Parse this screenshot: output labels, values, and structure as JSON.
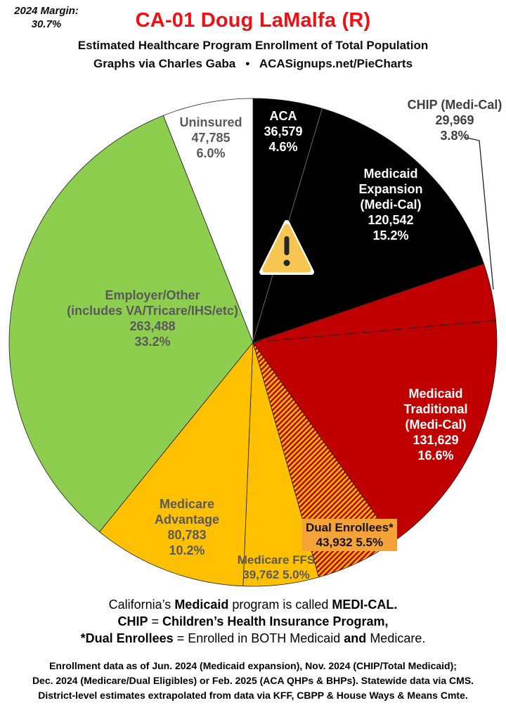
{
  "header": {
    "margin_label": "2024 Margin:",
    "margin_value": "30.7%",
    "title": "CA-01 Doug LaMalfa (R)",
    "title_color": "#f10e15",
    "subtitle": "Estimated Healthcare Program Enrollment of Total Population",
    "byline": "Graphs via Charles Gaba   •   ACASignups.net/PieCharts"
  },
  "chart_data": {
    "type": "pie",
    "title": "Estimated Healthcare Program Enrollment of Total Population",
    "district": "CA-01",
    "representative": "Doug LaMalfa (R)",
    "start_angle_deg": 0,
    "direction": "clockwise",
    "legend": "none",
    "white_divider_after_slice": 0,
    "hatch_colors": [
      "#C00000",
      "#FFC000"
    ],
    "warning_icon": {
      "fill": "#F7C552",
      "border": "#FFFFFF",
      "glyph": "#262626"
    },
    "slices": [
      {
        "id": "aca",
        "name": "ACA",
        "enrollment": "36,579",
        "pct": 4.6,
        "color": "#000000",
        "label_text": "ACA\n36,579\n4.6%"
      },
      {
        "id": "medicaid-expansion",
        "name": "Medicaid Expansion (Medi-Cal)",
        "enrollment": "120,542",
        "pct": 15.2,
        "color": "#000000",
        "label_text": "Medicaid\nExpansion\n(Medi-Cal)\n120,542\n15.2%"
      },
      {
        "id": "chip",
        "name": "CHIP (Medi-Cal)",
        "enrollment": "29,969",
        "pct": 3.8,
        "color": "#C00000",
        "label_text": "CHIP (Medi-Cal)\n29,969\n3.8%"
      },
      {
        "id": "medicaid-traditional",
        "name": "Medicaid Traditional (Medi-Cal)",
        "enrollment": "131,629",
        "pct": 16.6,
        "color": "#C00000",
        "label_text": "Medicaid\nTraditional\n(Medi-Cal)\n131,629\n16.6%"
      },
      {
        "id": "dual-enrollees",
        "name": "Dual Enrollees*",
        "enrollment": "43,932",
        "pct": 5.5,
        "color": "#C00000",
        "pattern": "hatch",
        "label_text": "Dual Enrollees*\n43,932 5.5%"
      },
      {
        "id": "medicare-ffs",
        "name": "Medicare FFS",
        "enrollment": "39,762",
        "pct": 5.0,
        "color": "#FFC000",
        "label_text": "Medicare FFS\n39,762 5.0%"
      },
      {
        "id": "medicare-advantage",
        "name": "Medicare Advantage",
        "enrollment": "80,783",
        "pct": 10.2,
        "color": "#FFC000",
        "label_text": "Medicare\nAdvantage\n80,783\n10.2%"
      },
      {
        "id": "employer-other",
        "name": "Employer/Other (includes VA/Tricare/IHS/etc)",
        "enrollment": "263,488",
        "pct": 33.2,
        "color": "#8DCE4F",
        "label_text": "Employer/Other\n(includes VA/Tricare/IHS/etc)\n263,488\n33.2%"
      },
      {
        "id": "uninsured",
        "name": "Uninsured",
        "enrollment": "47,785",
        "pct": 6.0,
        "color": "#FFFFFF",
        "label_text": "Uninsured\n47,785\n6.0%"
      }
    ]
  },
  "notes": {
    "l1a": "California’s ",
    "l1b": "Medicaid",
    "l1c": " program is called ",
    "l1d": "MEDI-CAL.",
    "l2a": "CHIP",
    "l2b": " = ",
    "l2c": "Children’s Health Insurance Program,",
    "l3a": "*Dual Enrollees",
    "l3b": " = Enrolled in BOTH Medicaid ",
    "l3c": "and",
    "l3d": " Medicare."
  },
  "footer": {
    "line1": "Enrollment data as of Jun. 2024 (Medicaid expansion), Nov. 2024 (CHIP/Total Medicaid);",
    "line2": "Dec. 2024 (Medicare/Dual Eligibles) or Feb. 2025 (ACA QHPs & BHPs). Statewide data via CMS.",
    "line3": "District-level estimates extrapolated from data via KFF, CBPP & House Ways & Means Cmte."
  }
}
